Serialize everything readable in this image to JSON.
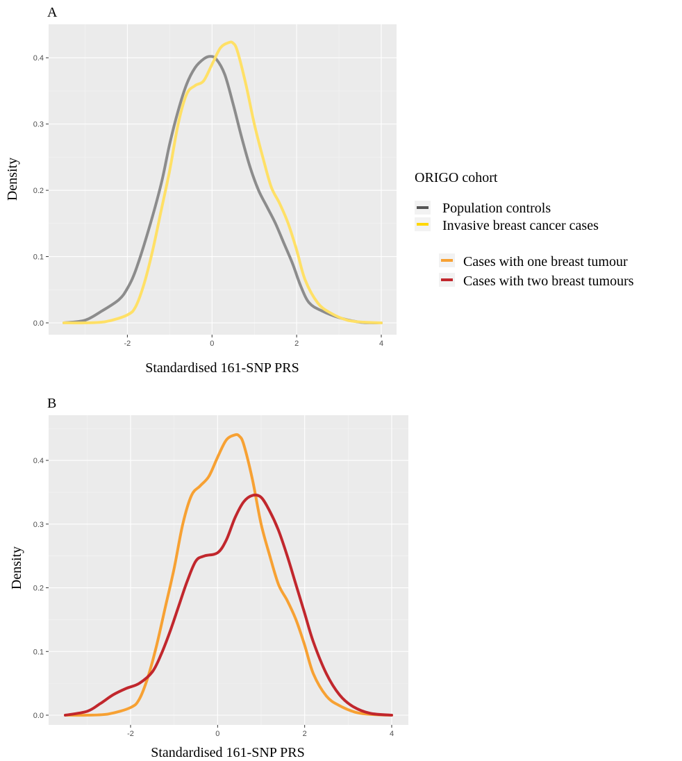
{
  "chart_data": [
    {
      "type": "line",
      "panel": "A",
      "xlabel": "Standardised 161-SNP PRS",
      "ylabel": "Density",
      "xlim": [
        -3.5,
        4
      ],
      "ylim": [
        0,
        0.44
      ],
      "xticks": [
        -2,
        0,
        2,
        4
      ],
      "xtick_labels": [
        "-2",
        "0",
        "2",
        "4"
      ],
      "yticks": [
        0.0,
        0.1,
        0.2,
        0.3,
        0.4
      ],
      "ytick_labels": [
        "0.0",
        "0.1",
        "0.2",
        "0.3",
        "0.4"
      ],
      "grid": true,
      "series": [
        {
          "name": "Population controls",
          "color": "#8c8c8c",
          "x": [
            -3.5,
            -3.0,
            -2.6,
            -2.2,
            -2.0,
            -1.8,
            -1.5,
            -1.2,
            -1.0,
            -0.8,
            -0.6,
            -0.4,
            -0.2,
            -0.05,
            0.1,
            0.3,
            0.5,
            0.7,
            0.9,
            1.1,
            1.3,
            1.5,
            1.7,
            1.9,
            2.1,
            2.3,
            2.6,
            3.0,
            3.5,
            4.0
          ],
          "y": [
            0.0,
            0.004,
            0.018,
            0.035,
            0.052,
            0.08,
            0.14,
            0.21,
            0.27,
            0.32,
            0.36,
            0.385,
            0.398,
            0.402,
            0.398,
            0.375,
            0.33,
            0.28,
            0.235,
            0.2,
            0.175,
            0.15,
            0.12,
            0.09,
            0.055,
            0.03,
            0.018,
            0.008,
            0.001,
            0.0
          ]
        },
        {
          "name": "Invasive breast cancer cases",
          "color": "#ffe066",
          "x": [
            -3.5,
            -3.0,
            -2.5,
            -2.0,
            -1.8,
            -1.6,
            -1.4,
            -1.2,
            -1.0,
            -0.8,
            -0.6,
            -0.4,
            -0.2,
            0.0,
            0.2,
            0.4,
            0.5,
            0.6,
            0.8,
            1.0,
            1.2,
            1.4,
            1.6,
            1.8,
            2.0,
            2.2,
            2.5,
            2.8,
            3.2,
            3.6,
            4.0
          ],
          "y": [
            0.0,
            0.0,
            0.002,
            0.012,
            0.025,
            0.06,
            0.11,
            0.17,
            0.23,
            0.3,
            0.345,
            0.358,
            0.365,
            0.39,
            0.415,
            0.423,
            0.422,
            0.41,
            0.36,
            0.3,
            0.25,
            0.205,
            0.18,
            0.15,
            0.11,
            0.065,
            0.03,
            0.015,
            0.004,
            0.001,
            0.0
          ]
        }
      ]
    },
    {
      "type": "line",
      "panel": "B",
      "xlabel": "Standardised 161-SNP PRS",
      "ylabel": "Density",
      "xlim": [
        -3.5,
        4
      ],
      "ylim": [
        0,
        0.46
      ],
      "xticks": [
        -2,
        0,
        2,
        4
      ],
      "xtick_labels": [
        "-2",
        "0",
        "2",
        "4"
      ],
      "yticks": [
        0.0,
        0.1,
        0.2,
        0.3,
        0.4
      ],
      "ytick_labels": [
        "0.0",
        "0.1",
        "0.2",
        "0.3",
        "0.4"
      ],
      "grid": true,
      "series": [
        {
          "name": "Cases with one breast tumour",
          "color": "#f7a133",
          "x": [
            -3.5,
            -3.0,
            -2.5,
            -2.0,
            -1.8,
            -1.6,
            -1.4,
            -1.2,
            -1.0,
            -0.8,
            -0.6,
            -0.4,
            -0.2,
            0.0,
            0.2,
            0.4,
            0.5,
            0.6,
            0.8,
            1.0,
            1.2,
            1.4,
            1.6,
            1.8,
            2.0,
            2.2,
            2.5,
            2.8,
            3.2,
            3.6,
            4.0
          ],
          "y": [
            0.0,
            0.0,
            0.002,
            0.012,
            0.025,
            0.06,
            0.11,
            0.17,
            0.23,
            0.3,
            0.345,
            0.36,
            0.375,
            0.405,
            0.432,
            0.44,
            0.438,
            0.425,
            0.37,
            0.3,
            0.25,
            0.205,
            0.18,
            0.15,
            0.11,
            0.065,
            0.03,
            0.015,
            0.004,
            0.001,
            0.0
          ]
        },
        {
          "name": "Cases with two breast tumours",
          "color": "#c1272d",
          "x": [
            -3.5,
            -3.0,
            -2.7,
            -2.4,
            -2.1,
            -1.8,
            -1.5,
            -1.3,
            -1.1,
            -0.9,
            -0.7,
            -0.5,
            -0.3,
            0.0,
            0.2,
            0.4,
            0.6,
            0.8,
            1.0,
            1.2,
            1.4,
            1.6,
            1.8,
            2.0,
            2.2,
            2.5,
            2.8,
            3.1,
            3.5,
            4.0
          ],
          "y": [
            0.0,
            0.006,
            0.018,
            0.032,
            0.042,
            0.05,
            0.068,
            0.095,
            0.13,
            0.17,
            0.21,
            0.242,
            0.25,
            0.255,
            0.275,
            0.31,
            0.335,
            0.345,
            0.342,
            0.32,
            0.29,
            0.25,
            0.205,
            0.16,
            0.115,
            0.065,
            0.032,
            0.014,
            0.003,
            0.0
          ]
        }
      ]
    }
  ],
  "panels": {
    "a": {
      "letter": "A",
      "xlabel": "Standardised 161-SNP PRS",
      "ylabel": "Density",
      "xtick_labels": [
        "-2",
        "0",
        "2",
        "4"
      ],
      "ytick_labels": [
        "0.0",
        "0.1",
        "0.2",
        "0.3",
        "0.4"
      ]
    },
    "b": {
      "letter": "B",
      "xlabel": "Standardised 161-SNP PRS",
      "ylabel": "Density",
      "xtick_labels": [
        "-2",
        "0",
        "2",
        "4"
      ],
      "ytick_labels": [
        "0.0",
        "0.1",
        "0.2",
        "0.3",
        "0.4"
      ]
    }
  },
  "legend": {
    "title": "ORIGO cohort",
    "items": [
      {
        "label": "Population controls",
        "color": "#555555"
      },
      {
        "label": "Invasive breast cancer cases",
        "color": "#ffd700"
      },
      {
        "label": "Cases with one breast tumour",
        "color": "#f7a133"
      },
      {
        "label": "Cases with two breast tumours",
        "color": "#c1272d"
      }
    ],
    "placement": "right of panel A"
  },
  "colors": {
    "panel_background": "#ebebeb",
    "gridline": "#ffffff"
  }
}
